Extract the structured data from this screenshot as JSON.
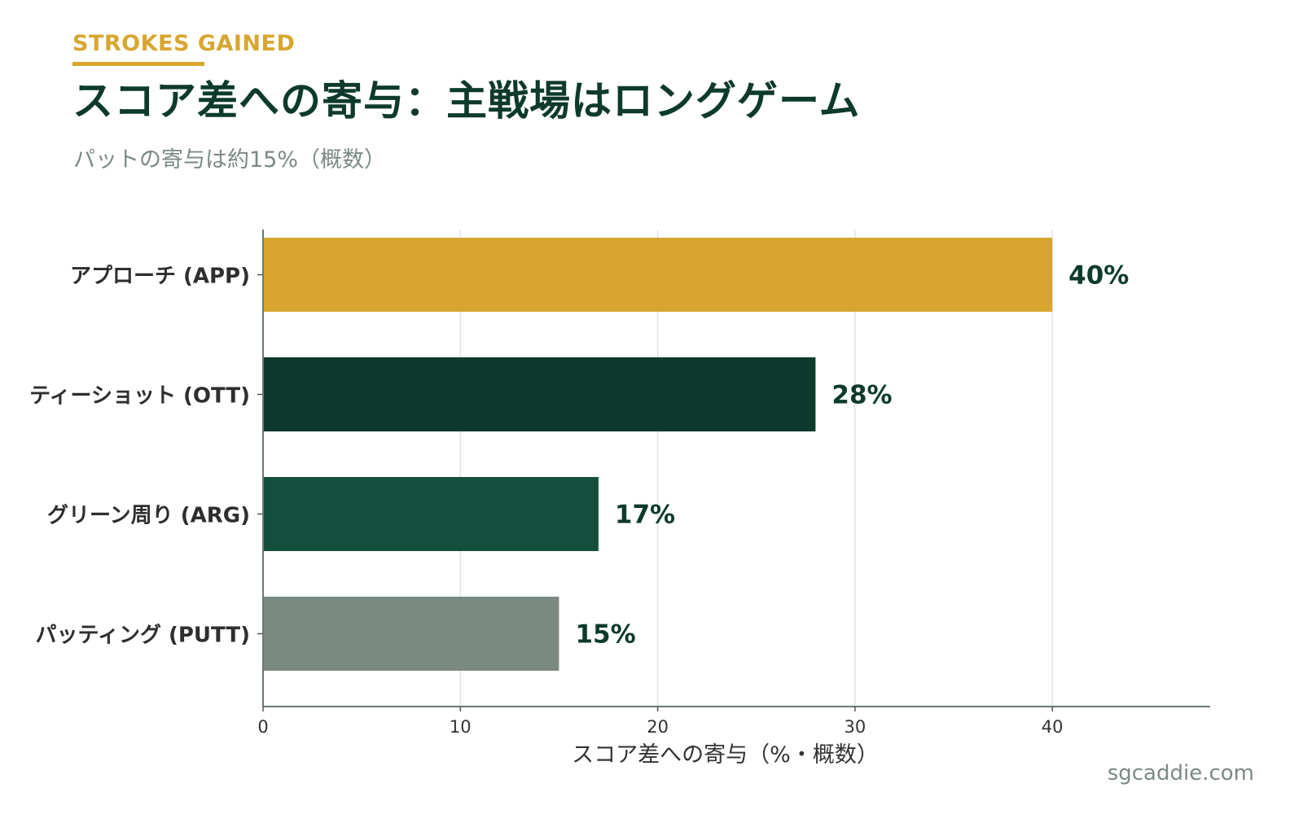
{
  "header": {
    "eyebrow": "STROKES GAINED",
    "title": "スコア差への寄与：主戦場はロングゲーム",
    "subtitle": "パットの寄与は約15%（概数）"
  },
  "footer": {
    "watermark": "sgcaddie.com"
  },
  "colors": {
    "accent": "#d8a630",
    "dark_green": "#0d3a2d",
    "mid_green": "#134f3c",
    "gray": "#7a8a80",
    "label_text": "#0d3a2d"
  },
  "chart_data": {
    "type": "bar",
    "orientation": "horizontal",
    "categories": [
      "アプローチ (APP)",
      "ティーショット (OTT)",
      "グリーン周り (ARG)",
      "パッティング (PUTT)"
    ],
    "values": [
      40,
      28,
      17,
      15
    ],
    "data_labels": [
      "40%",
      "28%",
      "17%",
      "15%"
    ],
    "bar_colors": [
      "#d8a630",
      "#0d3a2d",
      "#134f3c",
      "#7a8a80"
    ],
    "xlabel": "スコア差への寄与（%・概数）",
    "xlim": [
      0,
      48
    ],
    "xticks": [
      0,
      10,
      20,
      30,
      40
    ],
    "grid": "vertical",
    "legend": "none"
  }
}
